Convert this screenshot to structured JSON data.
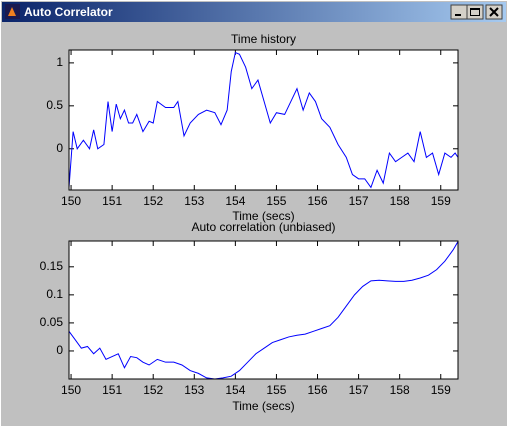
{
  "window": {
    "title": "Auto Correlator"
  },
  "chart_data": [
    {
      "type": "line",
      "title": "Time history",
      "xlabel": "Time (secs)",
      "x": [
        149.95,
        150.05,
        150.15,
        150.3,
        150.45,
        150.55,
        150.65,
        150.8,
        150.9,
        151.0,
        151.1,
        151.2,
        151.3,
        151.4,
        151.5,
        151.6,
        151.75,
        151.9,
        152.0,
        152.1,
        152.3,
        152.5,
        152.6,
        152.75,
        152.9,
        153.1,
        153.3,
        153.5,
        153.65,
        153.8,
        153.9,
        154.0,
        154.1,
        154.25,
        154.4,
        154.55,
        154.7,
        154.85,
        155.0,
        155.2,
        155.35,
        155.5,
        155.65,
        155.8,
        155.95,
        156.1,
        156.3,
        156.5,
        156.7,
        156.85,
        157.0,
        157.15,
        157.3,
        157.45,
        157.6,
        157.75,
        157.9,
        158.05,
        158.2,
        158.35,
        158.5,
        158.65,
        158.8,
        158.95,
        159.1,
        159.25,
        159.35,
        159.42
      ],
      "series": [
        {
          "color": "#0000ff",
          "values": [
            -0.45,
            0.2,
            0.0,
            0.1,
            0.0,
            0.22,
            0.0,
            0.05,
            0.55,
            0.2,
            0.52,
            0.35,
            0.45,
            0.3,
            0.3,
            0.4,
            0.2,
            0.32,
            0.3,
            0.55,
            0.48,
            0.48,
            0.55,
            0.15,
            0.3,
            0.4,
            0.45,
            0.42,
            0.28,
            0.45,
            0.9,
            1.12,
            1.1,
            0.95,
            0.7,
            0.8,
            0.55,
            0.3,
            0.42,
            0.4,
            0.55,
            0.7,
            0.45,
            0.65,
            0.55,
            0.35,
            0.25,
            0.05,
            -0.1,
            -0.3,
            -0.35,
            -0.35,
            -0.45,
            -0.25,
            -0.4,
            -0.05,
            -0.15,
            -0.1,
            -0.05,
            -0.15,
            0.2,
            -0.1,
            -0.05,
            -0.3,
            -0.05,
            -0.1,
            -0.05,
            -0.1
          ]
        }
      ],
      "xlim": [
        149.95,
        159.42
      ],
      "ylim": [
        -0.48,
        1.15
      ],
      "xticks": [
        150,
        151,
        152,
        153,
        154,
        155,
        156,
        157,
        158,
        159
      ],
      "yticks": [
        0,
        0.5,
        1
      ]
    },
    {
      "type": "line",
      "title": "Auto correlation (unbiased)",
      "xlabel": "Time (secs)",
      "x": [
        149.95,
        150.1,
        150.25,
        150.4,
        150.55,
        150.7,
        150.85,
        151.0,
        151.15,
        151.3,
        151.45,
        151.6,
        151.75,
        151.9,
        152.1,
        152.3,
        152.5,
        152.7,
        152.9,
        153.1,
        153.3,
        153.5,
        153.7,
        153.9,
        154.1,
        154.3,
        154.5,
        154.7,
        154.9,
        155.1,
        155.3,
        155.5,
        155.7,
        155.9,
        156.1,
        156.3,
        156.5,
        156.7,
        156.9,
        157.1,
        157.3,
        157.5,
        157.7,
        157.9,
        158.1,
        158.3,
        158.5,
        158.7,
        158.9,
        159.1,
        159.3,
        159.42
      ],
      "series": [
        {
          "color": "#0000ff",
          "values": [
            0.035,
            0.02,
            0.005,
            0.008,
            -0.005,
            0.005,
            -0.015,
            -0.01,
            -0.005,
            -0.03,
            -0.01,
            -0.012,
            -0.02,
            -0.025,
            -0.015,
            -0.02,
            -0.02,
            -0.025,
            -0.035,
            -0.04,
            -0.048,
            -0.05,
            -0.048,
            -0.045,
            -0.035,
            -0.02,
            -0.005,
            0.005,
            0.015,
            0.02,
            0.025,
            0.028,
            0.03,
            0.035,
            0.04,
            0.045,
            0.06,
            0.08,
            0.1,
            0.115,
            0.125,
            0.126,
            0.125,
            0.124,
            0.124,
            0.126,
            0.13,
            0.135,
            0.145,
            0.16,
            0.18,
            0.195
          ]
        }
      ],
      "xlim": [
        149.95,
        159.42
      ],
      "ylim": [
        -0.05,
        0.196
      ],
      "xticks": [
        150,
        151,
        152,
        153,
        154,
        155,
        156,
        157,
        158,
        159
      ],
      "yticks": [
        0,
        0.05,
        0.1,
        0.15
      ]
    }
  ]
}
